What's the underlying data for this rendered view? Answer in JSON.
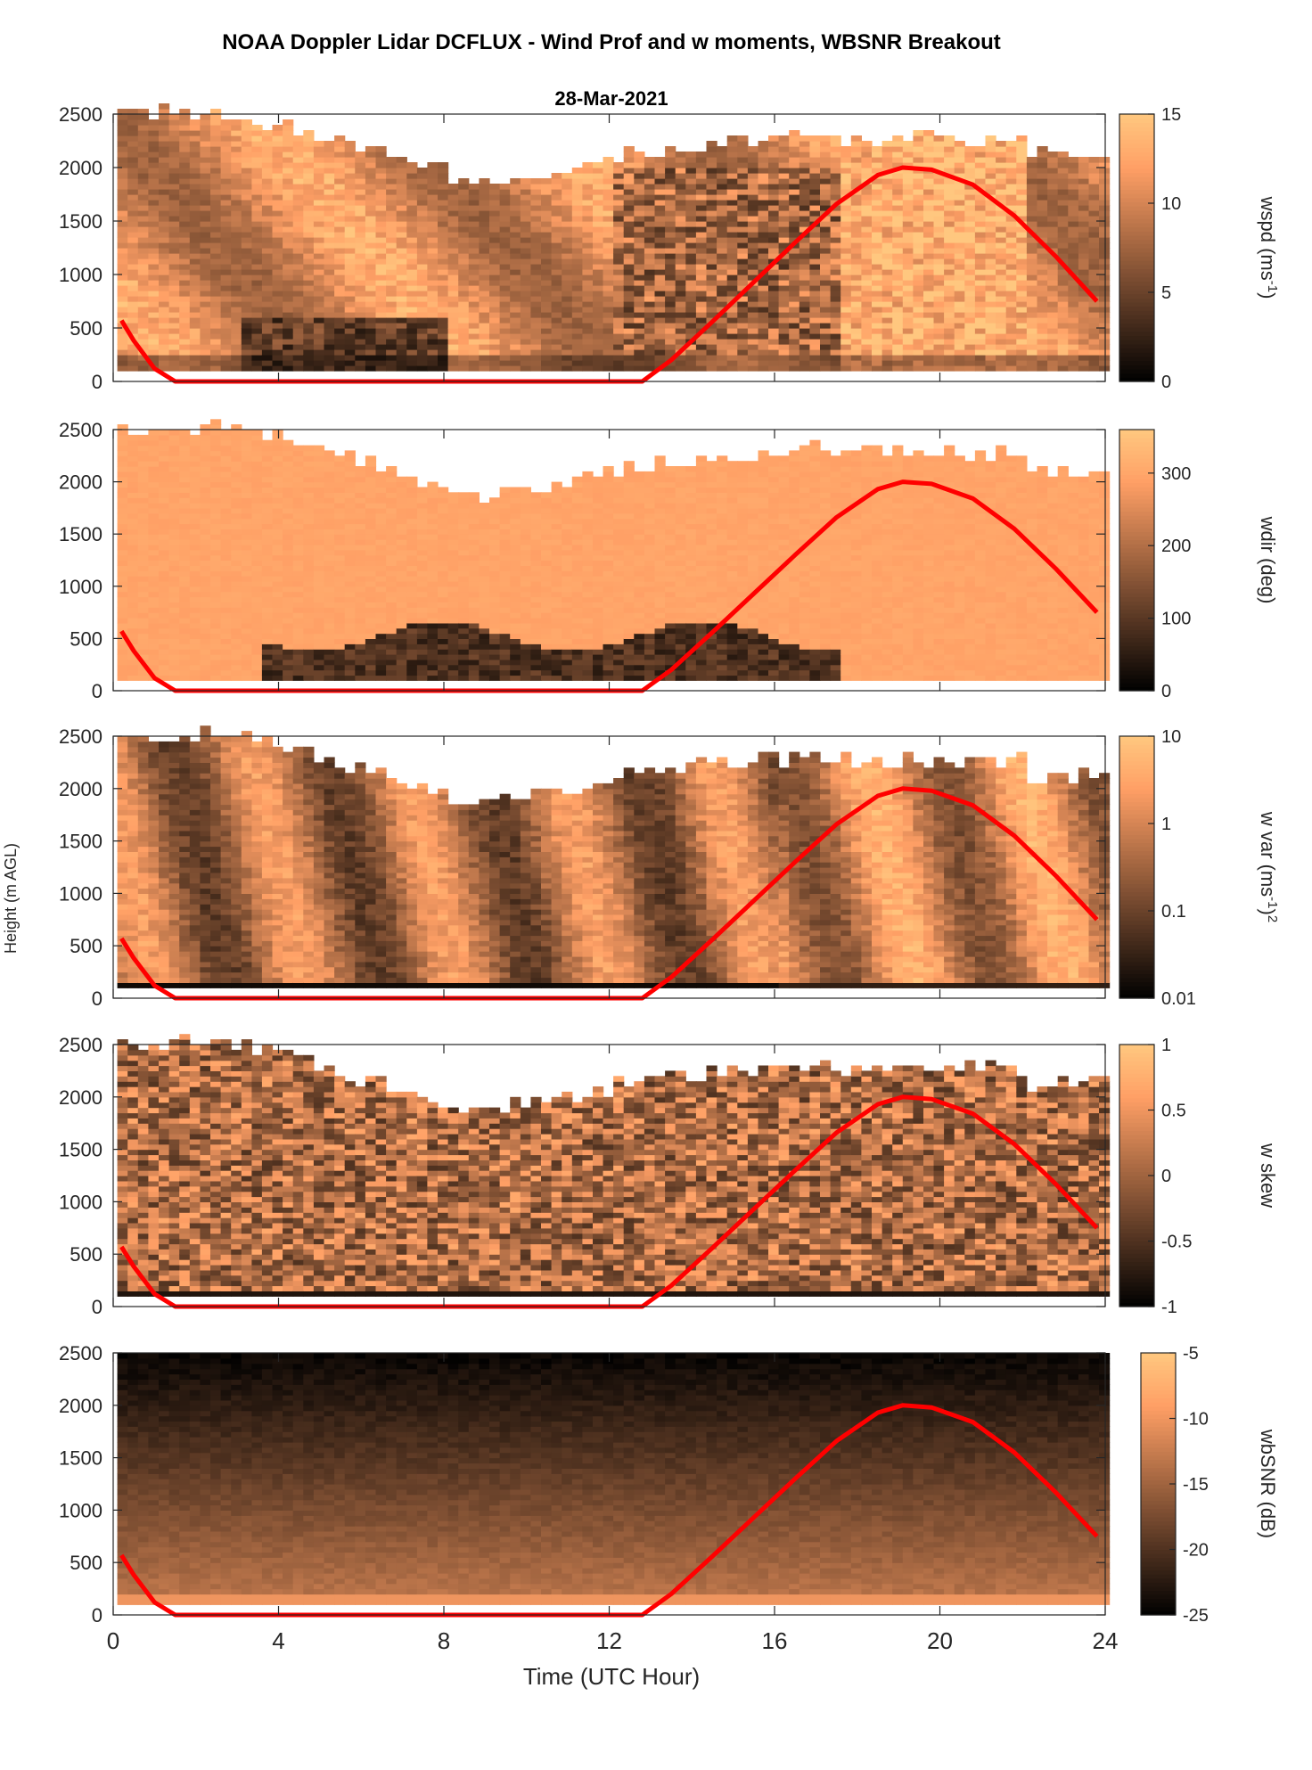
{
  "title": "NOAA Doppler Lidar DCFLUX - Wind Prof and w moments, WBSNR Breakout",
  "subtitle": "28-Mar-2021",
  "ylabel": "Height (m AGL)",
  "xlabel": "Time (UTC Hour)",
  "colors": {
    "curve": "#ff0000",
    "axis": "#262626"
  },
  "chart_data": {
    "type": "heatmap",
    "x_ticks": [
      "0",
      "4",
      "8",
      "12",
      "16",
      "20",
      "24"
    ],
    "xlim": [
      0,
      24
    ],
    "ylim": [
      0,
      2500
    ],
    "y_ticks": [
      "0",
      "500",
      "1000",
      "1500",
      "2000",
      "2500"
    ],
    "panels": [
      {
        "id": "wspd",
        "label": "wspd (ms",
        "label_sup": "-1",
        "label_tail": ")",
        "colorbar_ticks": [
          "0",
          "5",
          "10",
          "15"
        ],
        "clim": [
          0,
          15
        ],
        "scale": "linear"
      },
      {
        "id": "wdir",
        "label": "wdir (deg)",
        "colorbar_ticks": [
          "0",
          "100",
          "200",
          "300"
        ],
        "clim": [
          0,
          360
        ],
        "scale": "linear"
      },
      {
        "id": "wvar",
        "label": "w var (ms",
        "label_sup": "-1",
        "label_tail": ")",
        "label_sup2": "2",
        "colorbar_ticks": [
          "0.01",
          "0.1",
          "1",
          "10"
        ],
        "clim": [
          0.01,
          10
        ],
        "scale": "log"
      },
      {
        "id": "wskew",
        "label": "w skew",
        "colorbar_ticks": [
          "-1",
          "-0.5",
          "0",
          "0.5",
          "1"
        ],
        "clim": [
          -1,
          1
        ],
        "scale": "linear"
      },
      {
        "id": "wbsnr",
        "label": "wbSNR (dB)",
        "colorbar_ticks": [
          "-25",
          "-20",
          "-15",
          "-10",
          "-5"
        ],
        "clim": [
          -25,
          -5
        ],
        "scale": "linear"
      }
    ],
    "overlay_curve": {
      "name": "",
      "x": [
        0.2,
        0.5,
        1.0,
        1.5,
        3,
        6,
        9,
        12,
        12.8,
        13.5,
        14.5,
        15.5,
        16.5,
        17.5,
        18.5,
        19.1,
        19.8,
        20.8,
        21.8,
        22.8,
        23.8
      ],
      "y": [
        570,
        380,
        120,
        0,
        0,
        0,
        0,
        0,
        0,
        200,
        560,
        930,
        1300,
        1660,
        1930,
        2000,
        1980,
        1840,
        1550,
        1170,
        750
      ]
    }
  }
}
